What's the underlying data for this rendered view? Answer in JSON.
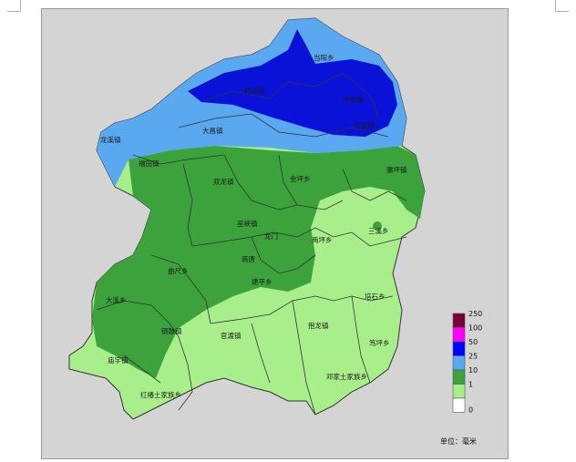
{
  "towns": [
    {
      "key": "dangyang",
      "label": "当阳乡"
    },
    {
      "key": "xichi",
      "label": "西河镇"
    },
    {
      "key": "pingba",
      "label": "坪坝镇"
    },
    {
      "key": "jiangjun",
      "label": "红星镇"
    },
    {
      "key": "dachang",
      "label": "大昌镇"
    },
    {
      "key": "longxi",
      "label": "龙溪镇"
    },
    {
      "key": "fuitian",
      "label": "福田镇"
    },
    {
      "key": "shuanglong",
      "label": "双龙镇"
    },
    {
      "key": "jinping",
      "label": "金坪乡"
    },
    {
      "key": "tanghu",
      "label": "骡坪镇"
    },
    {
      "key": "wuxia",
      "label": "巫峡镇"
    },
    {
      "key": "sanxi",
      "label": "三溪乡"
    },
    {
      "key": "longmen",
      "label": "龙门"
    },
    {
      "key": "gaotang",
      "label": "高唐"
    },
    {
      "key": "liangping",
      "label": "两坪乡"
    },
    {
      "key": "quchi",
      "label": "曲尺乡"
    },
    {
      "key": "jianping",
      "label": "建平乡"
    },
    {
      "key": "daxi",
      "label": "大溪乡"
    },
    {
      "key": "peishi",
      "label": "培石乡"
    },
    {
      "key": "tongluo",
      "label": "铜鼓镇"
    },
    {
      "key": "guandu",
      "label": "官渡镇"
    },
    {
      "key": "baolong",
      "label": "抱龙镇"
    },
    {
      "key": "duping",
      "label": "笃坪乡"
    },
    {
      "key": "miaoyu",
      "label": "庙宇镇"
    },
    {
      "key": "dengjia",
      "label": "邓家土家族乡"
    },
    {
      "key": "hongchun",
      "label": "红椿土家族乡"
    }
  ],
  "legend": {
    "labels": [
      "250",
      "100",
      "50",
      "25",
      "10",
      "1",
      "0"
    ],
    "colors": [
      "#7a0036",
      "#ff00ff",
      "#0000ff",
      "#5aa8f0",
      "#3ca33c",
      "#a8ef8c",
      "#ffffff"
    ]
  },
  "unit": "单位：毫米"
}
